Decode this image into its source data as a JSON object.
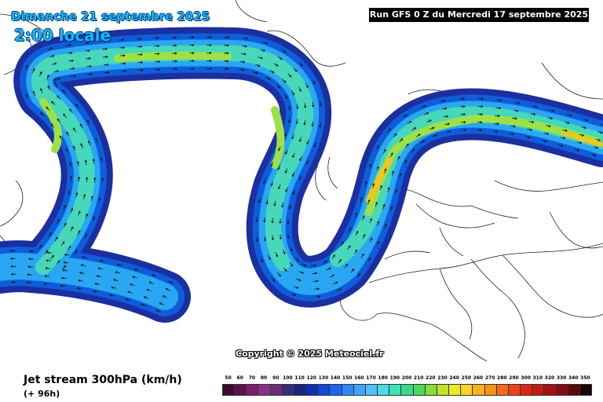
{
  "header": {
    "date": "Dimanche 21 septembre 2025",
    "time": "2:00 locale",
    "run": "Run GFS 0 Z du Mercredi 17 septembre 2025"
  },
  "footer": {
    "parameter": "Jet stream 300hPa (km/h)",
    "lead": "(+ 96h)",
    "copyright": "Copyright © 2025 Meteociel.fr"
  },
  "legend": {
    "values": [
      "50",
      "60",
      "70",
      "80",
      "90",
      "100",
      "110",
      "120",
      "130",
      "140",
      "150",
      "160",
      "170",
      "180",
      "190",
      "200",
      "210",
      "220",
      "230",
      "240",
      "250",
      "260",
      "270",
      "280",
      "290",
      "300",
      "310",
      "320",
      "330",
      "340",
      "350"
    ],
    "colors": [
      "#3d0a30",
      "#5c0f4a",
      "#7a1f6e",
      "#8a2f88",
      "#6b2d7c",
      "#3c2a7a",
      "#1a237e",
      "#0d2fb3",
      "#1146d9",
      "#1d64f0",
      "#2f86fa",
      "#3fa3fc",
      "#4ec2fb",
      "#4fd9e5",
      "#3ee2b8",
      "#38d98a",
      "#4fd65d",
      "#86dc38",
      "#bfe42b",
      "#ecea28",
      "#fcd324",
      "#fbb11f",
      "#f8901c",
      "#f36a1a",
      "#ec4419",
      "#dc2616",
      "#c31a14",
      "#a51212",
      "#840c10",
      "#5a080c",
      "#1b0203"
    ]
  },
  "map": {
    "region": "North Atlantic and Europe",
    "jet_colors": {
      "edge": "#1c2fa0",
      "outer": "#0e5ddb",
      "mid": "#2aa7f2",
      "inner": "#47d7b9",
      "core": "#9ee048",
      "max": "#f0c71d"
    },
    "arrow_color": "#111111",
    "coast_color": "#222222"
  }
}
